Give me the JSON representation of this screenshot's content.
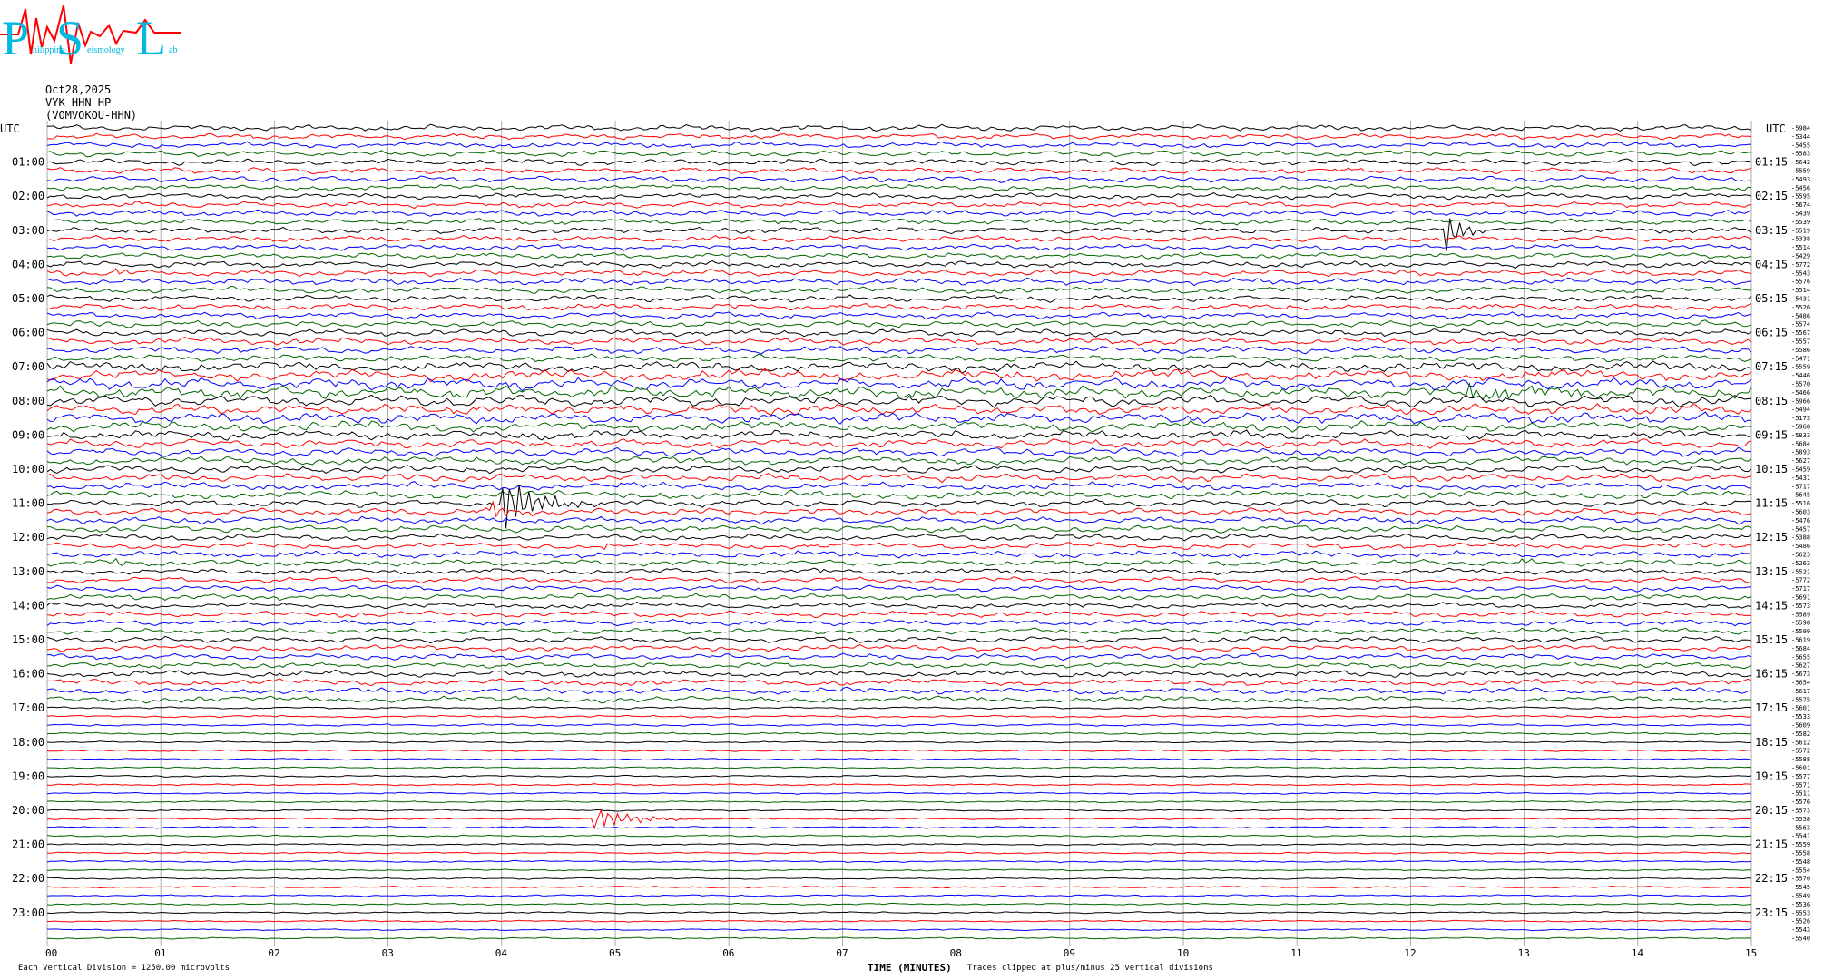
{
  "logo": {
    "letters": [
      "P",
      "S",
      "L"
    ],
    "words": [
      "hilippine",
      "eismology",
      "ab"
    ]
  },
  "header": {
    "date": "Oct28,2025",
    "station": "VYK HHN HP --",
    "channel": "(VOMVOKOU-HHN)"
  },
  "left_axis_title": "UTC",
  "right_axis_title": "UTC",
  "footer": {
    "left_mark": "",
    "scale": "Each Vertical Division = 1250.00 microvolts",
    "xlabel": "TIME (MINUTES)",
    "clip_note": "Traces clipped at plus/minus 25 vertical divisions"
  },
  "colors": {
    "trace_cycle": [
      "#000000",
      "#ff0000",
      "#0000ff",
      "#006400"
    ],
    "grid": "#999999",
    "logo_red": "#ff0000",
    "logo_cyan": "#00b8e0"
  },
  "chart_data": {
    "type": "line",
    "subtype": "helicorder",
    "traces_per_hour": 4,
    "trace_count": 96,
    "minutes_per_trace": 15,
    "xlim": [
      0,
      15
    ],
    "x_ticks": [
      "00",
      "01",
      "02",
      "03",
      "04",
      "05",
      "06",
      "07",
      "08",
      "09",
      "10",
      "11",
      "12",
      "13",
      "14",
      "15"
    ],
    "left_hour_labels": [
      "01:00",
      "02:00",
      "03:00",
      "04:00",
      "05:00",
      "06:00",
      "07:00",
      "08:00",
      "09:00",
      "10:00",
      "11:00",
      "12:00",
      "13:00",
      "14:00",
      "15:00",
      "16:00",
      "17:00",
      "18:00",
      "19:00",
      "20:00",
      "21:00",
      "22:00",
      "23:00"
    ],
    "right_hour_labels": [
      "01:15",
      "02:15",
      "03:15",
      "04:15",
      "05:15",
      "06:15",
      "07:15",
      "08:15",
      "09:15",
      "10:15",
      "11:15",
      "12:15",
      "13:15",
      "14:15",
      "15:15",
      "16:15",
      "17:15",
      "18:15",
      "19:15",
      "20:15",
      "21:15",
      "22:15",
      "23:15"
    ],
    "trace_offsets": [
      -5984,
      -5344,
      -5455,
      -5583,
      -5642,
      -5559,
      -5493,
      -5456,
      -5595,
      -5674,
      -5439,
      -5539,
      -5519,
      -5338,
      -5514,
      -5429,
      -5772,
      -5543,
      -5576,
      -5514,
      -5431,
      -5526,
      -5486,
      -5574,
      -5567,
      -5557,
      -5586,
      -5471,
      -5559,
      -5446,
      -5570,
      -5466,
      -5966,
      -5494,
      -5173,
      -5968,
      -5833,
      -5684,
      -5893,
      -5627,
      -5459,
      -5431,
      -5717,
      -5645,
      -5516,
      -5603,
      -5476,
      -5457,
      -5388,
      -5486,
      -5623,
      -5263,
      -5521,
      -5772,
      -5717,
      -5691,
      -5573,
      -5589,
      -5598,
      -5599,
      -5619,
      -5684,
      -5655,
      -5627,
      -5673,
      -5654,
      -5617,
      -5575,
      -5601,
      -5533,
      -5609,
      -5582,
      -5612,
      -5572,
      -5588,
      -5601,
      -5577,
      -5571,
      -5511,
      -5576,
      -5573,
      -5558,
      -5563,
      -5541,
      -5559,
      -5558,
      -5548,
      -5554,
      -5570,
      -5545,
      -5549,
      -5536,
      -5553,
      -5526,
      -5543,
      -5540
    ],
    "noise_level": [
      1.0,
      1.0,
      1.0,
      1.0,
      1.0,
      1.0,
      1.0,
      1.0,
      1.0,
      1.0,
      1.0,
      1.0,
      1.0,
      1.0,
      1.0,
      1.0,
      1.1,
      1.1,
      1.1,
      1.1,
      1.1,
      1.1,
      1.1,
      1.1,
      1.2,
      1.2,
      1.2,
      1.2,
      1.8,
      1.9,
      2.0,
      2.0,
      1.9,
      1.8,
      1.8,
      1.7,
      1.6,
      1.5,
      1.4,
      1.4,
      1.3,
      1.3,
      1.3,
      1.3,
      1.2,
      1.2,
      1.2,
      1.2,
      1.1,
      1.1,
      1.1,
      1.1,
      1.0,
      1.0,
      1.0,
      1.0,
      1.0,
      1.0,
      1.0,
      1.0,
      1.0,
      1.0,
      1.0,
      1.0,
      1.1,
      1.1,
      1.1,
      1.1,
      0.4,
      0.4,
      0.4,
      0.4,
      0.3,
      0.3,
      0.3,
      0.3,
      0.3,
      0.3,
      0.3,
      0.3,
      0.3,
      0.3,
      0.3,
      0.3,
      0.3,
      0.3,
      0.3,
      0.3,
      0.3,
      0.3,
      0.3,
      0.3,
      0.3,
      0.3,
      0.3,
      0.3
    ],
    "events": [
      {
        "trace": 12,
        "minute": 12.3,
        "amplitude": 40,
        "duration": 0.4
      },
      {
        "trace": 17,
        "minute": 0.6,
        "amplitude": 5,
        "duration": 0.3
      },
      {
        "trace": 31,
        "minute": 12.5,
        "amplitude": 10,
        "duration": 2.5
      },
      {
        "trace": 44,
        "minute": 4.0,
        "amplitude": 35,
        "duration": 1.0
      },
      {
        "trace": 45,
        "minute": 3.9,
        "amplitude": 12,
        "duration": 0.5
      },
      {
        "trace": 49,
        "minute": 4.9,
        "amplitude": 4,
        "duration": 0.2
      },
      {
        "trace": 51,
        "minute": 0.6,
        "amplitude": 6,
        "duration": 0.3
      },
      {
        "trace": 51,
        "minute": 12.9,
        "amplitude": 6,
        "duration": 0.3
      },
      {
        "trace": 52,
        "minute": 6.8,
        "amplitude": 4,
        "duration": 0.2
      },
      {
        "trace": 81,
        "minute": 4.8,
        "amplitude": 18,
        "duration": 1.0
      },
      {
        "trace": 84,
        "minute": 9.7,
        "amplitude": 3,
        "duration": 0.1
      },
      {
        "trace": 86,
        "minute": 8.9,
        "amplitude": 4,
        "duration": 0.1
      }
    ]
  }
}
